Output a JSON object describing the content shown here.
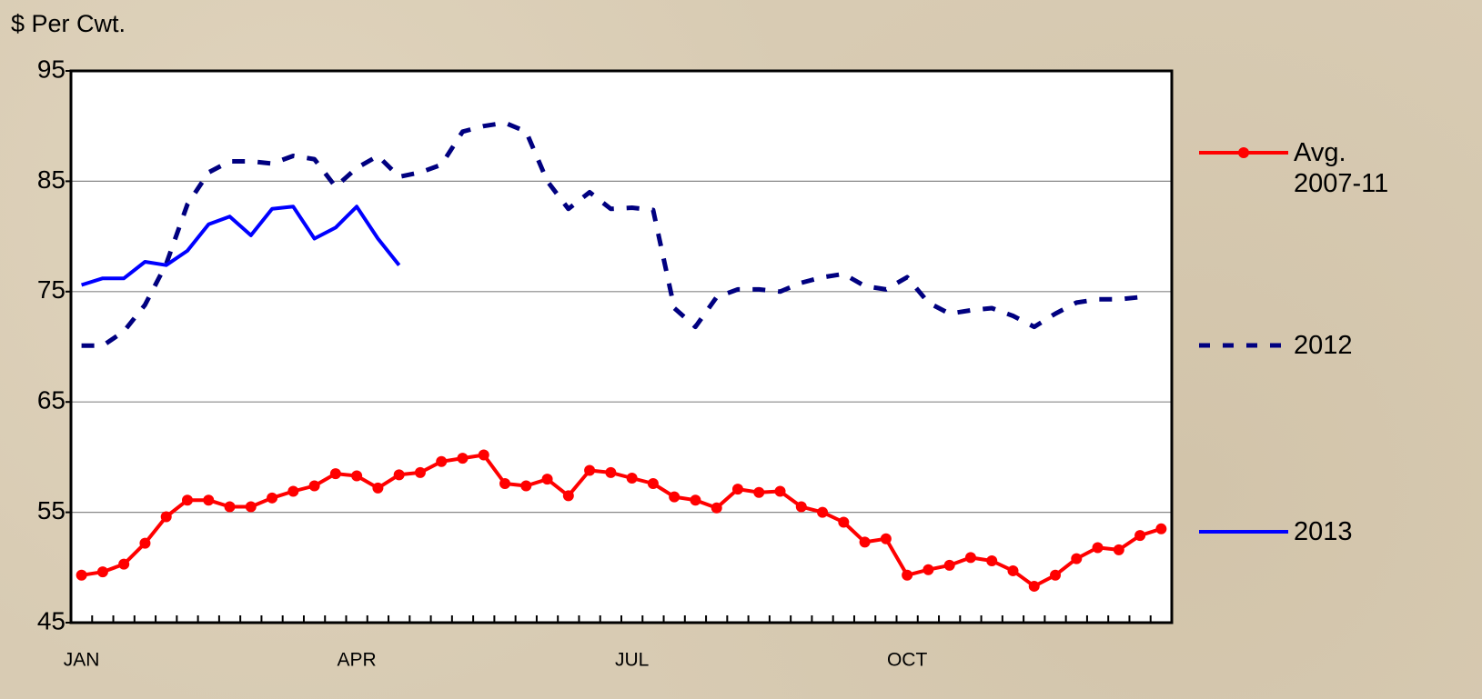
{
  "chart_data": {
    "type": "line",
    "ylabel": "$ Per Cwt.",
    "categories": [
      "JAN",
      null,
      null,
      null,
      null,
      null,
      null,
      null,
      null,
      null,
      null,
      null,
      null,
      "APR",
      null,
      null,
      null,
      null,
      null,
      null,
      null,
      null,
      null,
      null,
      null,
      null,
      "JUL",
      null,
      null,
      null,
      null,
      null,
      null,
      null,
      null,
      null,
      null,
      null,
      null,
      "OCT",
      null,
      null,
      null,
      null,
      null,
      null,
      null,
      null,
      null,
      null,
      null,
      null
    ],
    "series": [
      {
        "name": "Avg. 2007-11",
        "color": "#ff0000",
        "line_style": "solid",
        "markers": true,
        "values": [
          49.3,
          49.6,
          50.3,
          52.2,
          54.6,
          56.1,
          56.1,
          55.5,
          55.5,
          56.3,
          56.9,
          57.4,
          58.5,
          58.3,
          57.2,
          58.4,
          58.6,
          59.6,
          59.9,
          60.2,
          57.6,
          57.4,
          58.0,
          56.5,
          58.8,
          58.6,
          58.1,
          57.6,
          56.4,
          56.1,
          55.4,
          57.1,
          56.8,
          56.9,
          55.5,
          55.0,
          54.1,
          52.3,
          52.6,
          49.3,
          49.8,
          50.2,
          50.9,
          50.6,
          49.7,
          48.3,
          49.3,
          50.8,
          51.8,
          51.6,
          52.9,
          53.5
        ]
      },
      {
        "name": "2012",
        "color": "#000080",
        "line_style": "dashed",
        "markers": false,
        "values": [
          70.1,
          70.1,
          71.4,
          73.8,
          77.5,
          82.9,
          85.8,
          86.8,
          86.8,
          86.6,
          87.3,
          87.0,
          84.5,
          86.2,
          87.3,
          85.4,
          85.8,
          86.5,
          89.5,
          90.0,
          90.3,
          89.5,
          85.0,
          82.5,
          84.0,
          82.5,
          82.6,
          82.4,
          73.5,
          71.8,
          74.5,
          75.2,
          75.2,
          75.0,
          75.8,
          76.3,
          76.6,
          75.5,
          75.2,
          76.3,
          74.0,
          73.0,
          73.3,
          73.5,
          72.8,
          71.8,
          73.0,
          74.0,
          74.3,
          74.3,
          74.5,
          null
        ]
      },
      {
        "name": "2013",
        "color": "#0000ff",
        "line_style": "solid",
        "markers": false,
        "values": [
          75.6,
          76.2,
          76.2,
          77.7,
          77.4,
          78.7,
          81.1,
          81.8,
          80.1,
          82.5,
          82.7,
          79.8,
          80.8,
          82.7,
          79.8,
          77.4,
          null,
          null,
          null,
          null,
          null,
          null,
          null,
          null,
          null,
          null,
          null,
          null,
          null,
          null,
          null,
          null,
          null,
          null,
          null,
          null,
          null,
          null,
          null,
          null,
          null,
          null,
          null,
          null,
          null,
          null,
          null,
          null,
          null,
          null,
          null,
          null
        ]
      }
    ],
    "ylim": [
      45,
      95
    ],
    "yticks": [
      45,
      55,
      65,
      75,
      85,
      95
    ],
    "grid": true,
    "legend": "right"
  }
}
